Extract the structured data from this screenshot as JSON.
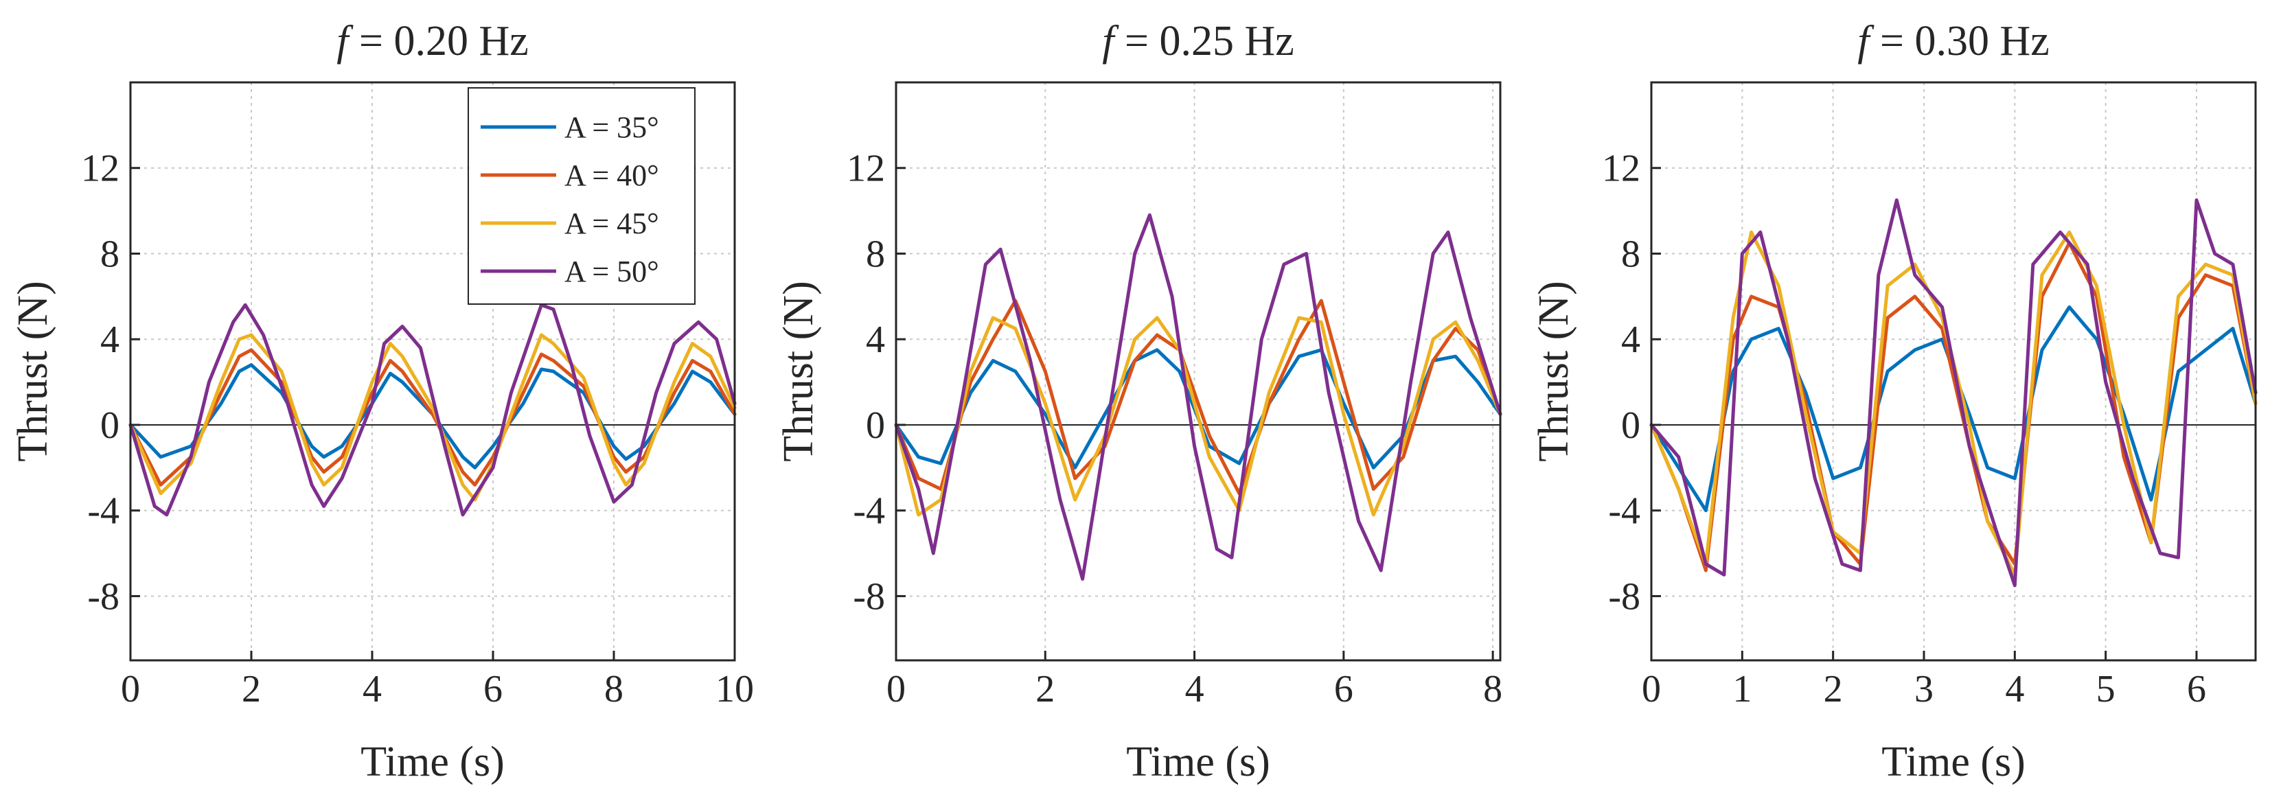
{
  "colors": [
    "#0072BD",
    "#D95319",
    "#EDB120",
    "#7E2F8E"
  ],
  "legend": {
    "entries": [
      "A = 35°",
      "A = 40°",
      "A = 45°",
      "A = 50°"
    ]
  },
  "chart_data": [
    {
      "type": "line",
      "title_italic": "f",
      "title_rest": " = 0.20 Hz",
      "xlabel": "Time (s)",
      "ylabel": "Thrust (N)",
      "xlim": [
        0,
        10
      ],
      "ylim": [
        -11,
        16
      ],
      "xticks": [
        0,
        2,
        4,
        6,
        8,
        10
      ],
      "yticks": [
        -8,
        -4,
        0,
        4,
        8,
        12
      ],
      "grid": true,
      "series": [
        {
          "name": "A = 35°",
          "x": [
            0,
            0.5,
            1.0,
            1.5,
            1.8,
            2.0,
            2.5,
            3.0,
            3.2,
            3.5,
            4.0,
            4.3,
            4.5,
            5.0,
            5.5,
            5.7,
            6.0,
            6.5,
            6.8,
            7.0,
            7.5,
            8.0,
            8.2,
            8.5,
            9.0,
            9.3,
            9.6,
            10.0
          ],
          "y": [
            0,
            -1.5,
            -1.0,
            1.0,
            2.5,
            2.8,
            1.5,
            -1.0,
            -1.5,
            -1.0,
            1.0,
            2.4,
            2.0,
            0.5,
            -1.5,
            -2.0,
            -1.0,
            1.0,
            2.6,
            2.5,
            1.5,
            -1.0,
            -1.6,
            -1.0,
            1.0,
            2.5,
            2.0,
            0.5
          ]
        },
        {
          "name": "A = 40°",
          "x": [
            0,
            0.5,
            1.0,
            1.5,
            1.8,
            2.0,
            2.5,
            3.0,
            3.2,
            3.5,
            4.0,
            4.3,
            4.5,
            5.0,
            5.5,
            5.7,
            6.0,
            6.5,
            6.8,
            7.0,
            7.5,
            8.0,
            8.2,
            8.5,
            9.0,
            9.3,
            9.6,
            10.0
          ],
          "y": [
            0,
            -2.8,
            -1.5,
            1.5,
            3.2,
            3.5,
            2.0,
            -1.5,
            -2.2,
            -1.5,
            1.5,
            3.0,
            2.5,
            0.5,
            -2.2,
            -2.8,
            -1.5,
            1.5,
            3.3,
            3.0,
            1.8,
            -1.5,
            -2.2,
            -1.5,
            1.5,
            3.0,
            2.5,
            0.5
          ]
        },
        {
          "name": "A = 45°",
          "x": [
            0,
            0.5,
            1.0,
            1.5,
            1.8,
            2.0,
            2.5,
            3.0,
            3.2,
            3.5,
            4.0,
            4.3,
            4.5,
            5.0,
            5.5,
            5.7,
            6.0,
            6.5,
            6.8,
            7.0,
            7.5,
            8.0,
            8.2,
            8.5,
            9.0,
            9.3,
            9.6,
            10.0
          ],
          "y": [
            0,
            -3.2,
            -1.8,
            2.0,
            4.0,
            4.2,
            2.5,
            -1.8,
            -2.8,
            -2.0,
            2.0,
            3.8,
            3.2,
            0.8,
            -2.8,
            -3.5,
            -1.8,
            2.0,
            4.2,
            3.8,
            2.2,
            -1.8,
            -2.8,
            -1.8,
            2.0,
            3.8,
            3.2,
            0.8
          ]
        },
        {
          "name": "A = 50°",
          "x": [
            0,
            0.4,
            0.6,
            1.0,
            1.3,
            1.7,
            1.9,
            2.2,
            2.6,
            3.0,
            3.2,
            3.5,
            4.0,
            4.2,
            4.5,
            4.8,
            5.2,
            5.5,
            6.0,
            6.3,
            6.8,
            7.0,
            7.3,
            7.6,
            8.0,
            8.3,
            8.7,
            9.0,
            9.4,
            9.7,
            10.0
          ],
          "y": [
            0,
            -3.8,
            -4.2,
            -1.5,
            2.0,
            4.8,
            5.6,
            4.2,
            1.0,
            -2.8,
            -3.8,
            -2.5,
            1.0,
            3.8,
            4.6,
            3.6,
            -1.0,
            -4.2,
            -2.0,
            1.5,
            5.6,
            5.4,
            2.8,
            -0.5,
            -3.6,
            -2.8,
            1.5,
            3.8,
            4.8,
            4.0,
            1.0
          ]
        }
      ]
    },
    {
      "type": "line",
      "title_italic": "f",
      "title_rest": " = 0.25 Hz",
      "xlabel": "Time (s)",
      "ylabel": "Thrust (N)",
      "xlim": [
        0,
        8.1
      ],
      "ylim": [
        -11,
        16
      ],
      "xticks": [
        0,
        2,
        4,
        6,
        8
      ],
      "yticks": [
        -8,
        -4,
        0,
        4,
        8,
        12
      ],
      "grid": true,
      "series": [
        {
          "name": "A = 35°",
          "x": [
            0,
            0.3,
            0.6,
            1.0,
            1.3,
            1.6,
            2.0,
            2.4,
            2.8,
            3.2,
            3.5,
            3.8,
            4.2,
            4.6,
            5.0,
            5.4,
            5.7,
            6.0,
            6.4,
            6.8,
            7.2,
            7.5,
            7.8,
            8.1
          ],
          "y": [
            0,
            -1.5,
            -1.8,
            1.5,
            3.0,
            2.5,
            0.5,
            -2.0,
            0.5,
            3.0,
            3.5,
            2.5,
            -1.0,
            -1.8,
            1.0,
            3.2,
            3.5,
            1.0,
            -2.0,
            -0.5,
            3.0,
            3.2,
            2.0,
            0.5
          ]
        },
        {
          "name": "A = 40°",
          "x": [
            0,
            0.3,
            0.6,
            1.0,
            1.3,
            1.6,
            2.0,
            2.4,
            2.8,
            3.2,
            3.5,
            3.8,
            4.2,
            4.6,
            5.0,
            5.4,
            5.7,
            6.0,
            6.4,
            6.8,
            7.2,
            7.5,
            7.8,
            8.1
          ],
          "y": [
            0,
            -2.5,
            -3.0,
            2.0,
            4.0,
            5.8,
            2.5,
            -2.5,
            -1.0,
            3.0,
            4.2,
            3.5,
            -0.5,
            -3.2,
            1.0,
            4.0,
            5.8,
            2.0,
            -3.0,
            -1.5,
            3.0,
            4.5,
            3.5,
            0.5
          ]
        },
        {
          "name": "A = 45°",
          "x": [
            0,
            0.3,
            0.6,
            1.0,
            1.3,
            1.6,
            2.0,
            2.4,
            2.8,
            3.2,
            3.5,
            3.8,
            4.2,
            4.6,
            5.0,
            5.4,
            5.7,
            6.0,
            6.4,
            6.8,
            7.2,
            7.5,
            7.8,
            8.1
          ],
          "y": [
            0,
            -4.2,
            -3.5,
            2.5,
            5.0,
            4.5,
            1.0,
            -3.5,
            -0.5,
            4.0,
            5.0,
            3.5,
            -1.5,
            -4.0,
            1.5,
            5.0,
            4.8,
            0.5,
            -4.2,
            -1.0,
            4.0,
            4.8,
            3.0,
            0.5
          ]
        },
        {
          "name": "A = 50°",
          "x": [
            0,
            0.3,
            0.5,
            0.9,
            1.2,
            1.4,
            1.8,
            2.2,
            2.5,
            2.9,
            3.2,
            3.4,
            3.7,
            4.0,
            4.3,
            4.5,
            4.9,
            5.2,
            5.5,
            5.8,
            6.2,
            6.5,
            6.9,
            7.2,
            7.4,
            7.7,
            8.1
          ],
          "y": [
            0,
            -3.0,
            -6.0,
            1.5,
            7.5,
            8.2,
            3.0,
            -3.5,
            -7.2,
            1.5,
            8.0,
            9.8,
            6.0,
            -1.0,
            -5.8,
            -6.2,
            4.0,
            7.5,
            8.0,
            1.5,
            -4.5,
            -6.8,
            2.0,
            8.0,
            9.0,
            5.0,
            0.5
          ]
        }
      ]
    },
    {
      "type": "line",
      "title_italic": "f",
      "title_rest": " = 0.30 Hz",
      "xlabel": "Time (s)",
      "ylabel": "Thrust (N)",
      "xlim": [
        0,
        6.65
      ],
      "ylim": [
        -11,
        16
      ],
      "xticks": [
        0,
        1,
        2,
        3,
        4,
        5,
        6
      ],
      "yticks": [
        -8,
        -4,
        0,
        4,
        8,
        12
      ],
      "grid": true,
      "series": [
        {
          "name": "A = 35°",
          "x": [
            0,
            0.3,
            0.6,
            0.9,
            1.1,
            1.4,
            1.7,
            2.0,
            2.3,
            2.6,
            2.9,
            3.2,
            3.5,
            3.7,
            4.0,
            4.3,
            4.6,
            4.9,
            5.2,
            5.5,
            5.8,
            6.1,
            6.4,
            6.65
          ],
          "y": [
            0,
            -2.0,
            -4.0,
            2.5,
            4.0,
            4.5,
            1.5,
            -2.5,
            -2.0,
            2.5,
            3.5,
            4.0,
            0.5,
            -2.0,
            -2.5,
            3.5,
            5.5,
            4.0,
            0.5,
            -3.5,
            2.5,
            3.5,
            4.5,
            1.0
          ]
        },
        {
          "name": "A = 40°",
          "x": [
            0,
            0.3,
            0.6,
            0.9,
            1.1,
            1.4,
            1.7,
            2.0,
            2.3,
            2.6,
            2.9,
            3.2,
            3.5,
            3.7,
            4.0,
            4.3,
            4.6,
            4.9,
            5.2,
            5.5,
            5.8,
            6.1,
            6.4,
            6.65
          ],
          "y": [
            0,
            -3.0,
            -6.8,
            4.0,
            6.0,
            5.5,
            1.0,
            -5.0,
            -6.5,
            5.0,
            6.0,
            4.5,
            -1.0,
            -4.5,
            -6.5,
            6.0,
            8.5,
            6.0,
            -1.5,
            -5.5,
            5.0,
            7.0,
            6.5,
            1.0
          ]
        },
        {
          "name": "A = 45°",
          "x": [
            0,
            0.3,
            0.6,
            0.9,
            1.1,
            1.4,
            1.7,
            2.0,
            2.3,
            2.6,
            2.9,
            3.2,
            3.5,
            3.7,
            4.0,
            4.3,
            4.6,
            4.9,
            5.2,
            5.5,
            5.8,
            6.1,
            6.4,
            6.65
          ],
          "y": [
            0,
            -3.0,
            -6.5,
            5.0,
            9.0,
            6.5,
            0.5,
            -5.0,
            -6.0,
            6.5,
            7.5,
            5.0,
            0.0,
            -4.5,
            -7.0,
            7.0,
            9.0,
            6.5,
            0.0,
            -5.5,
            6.0,
            7.5,
            7.0,
            1.0
          ]
        },
        {
          "name": "A = 50°",
          "x": [
            0,
            0.3,
            0.6,
            0.8,
            1.0,
            1.2,
            1.5,
            1.8,
            2.1,
            2.3,
            2.5,
            2.7,
            2.9,
            3.2,
            3.5,
            3.8,
            4.0,
            4.2,
            4.5,
            4.8,
            5.0,
            5.3,
            5.6,
            5.8,
            6.0,
            6.2,
            6.4,
            6.65
          ],
          "y": [
            0,
            -1.5,
            -6.5,
            -7.0,
            8.0,
            9.0,
            4.0,
            -2.5,
            -6.5,
            -6.8,
            7.0,
            10.5,
            7.0,
            5.5,
            -1.0,
            -5.0,
            -7.5,
            7.5,
            9.0,
            7.5,
            2.0,
            -2.5,
            -6.0,
            -6.2,
            10.5,
            8.0,
            7.5,
            1.5
          ]
        }
      ]
    }
  ]
}
